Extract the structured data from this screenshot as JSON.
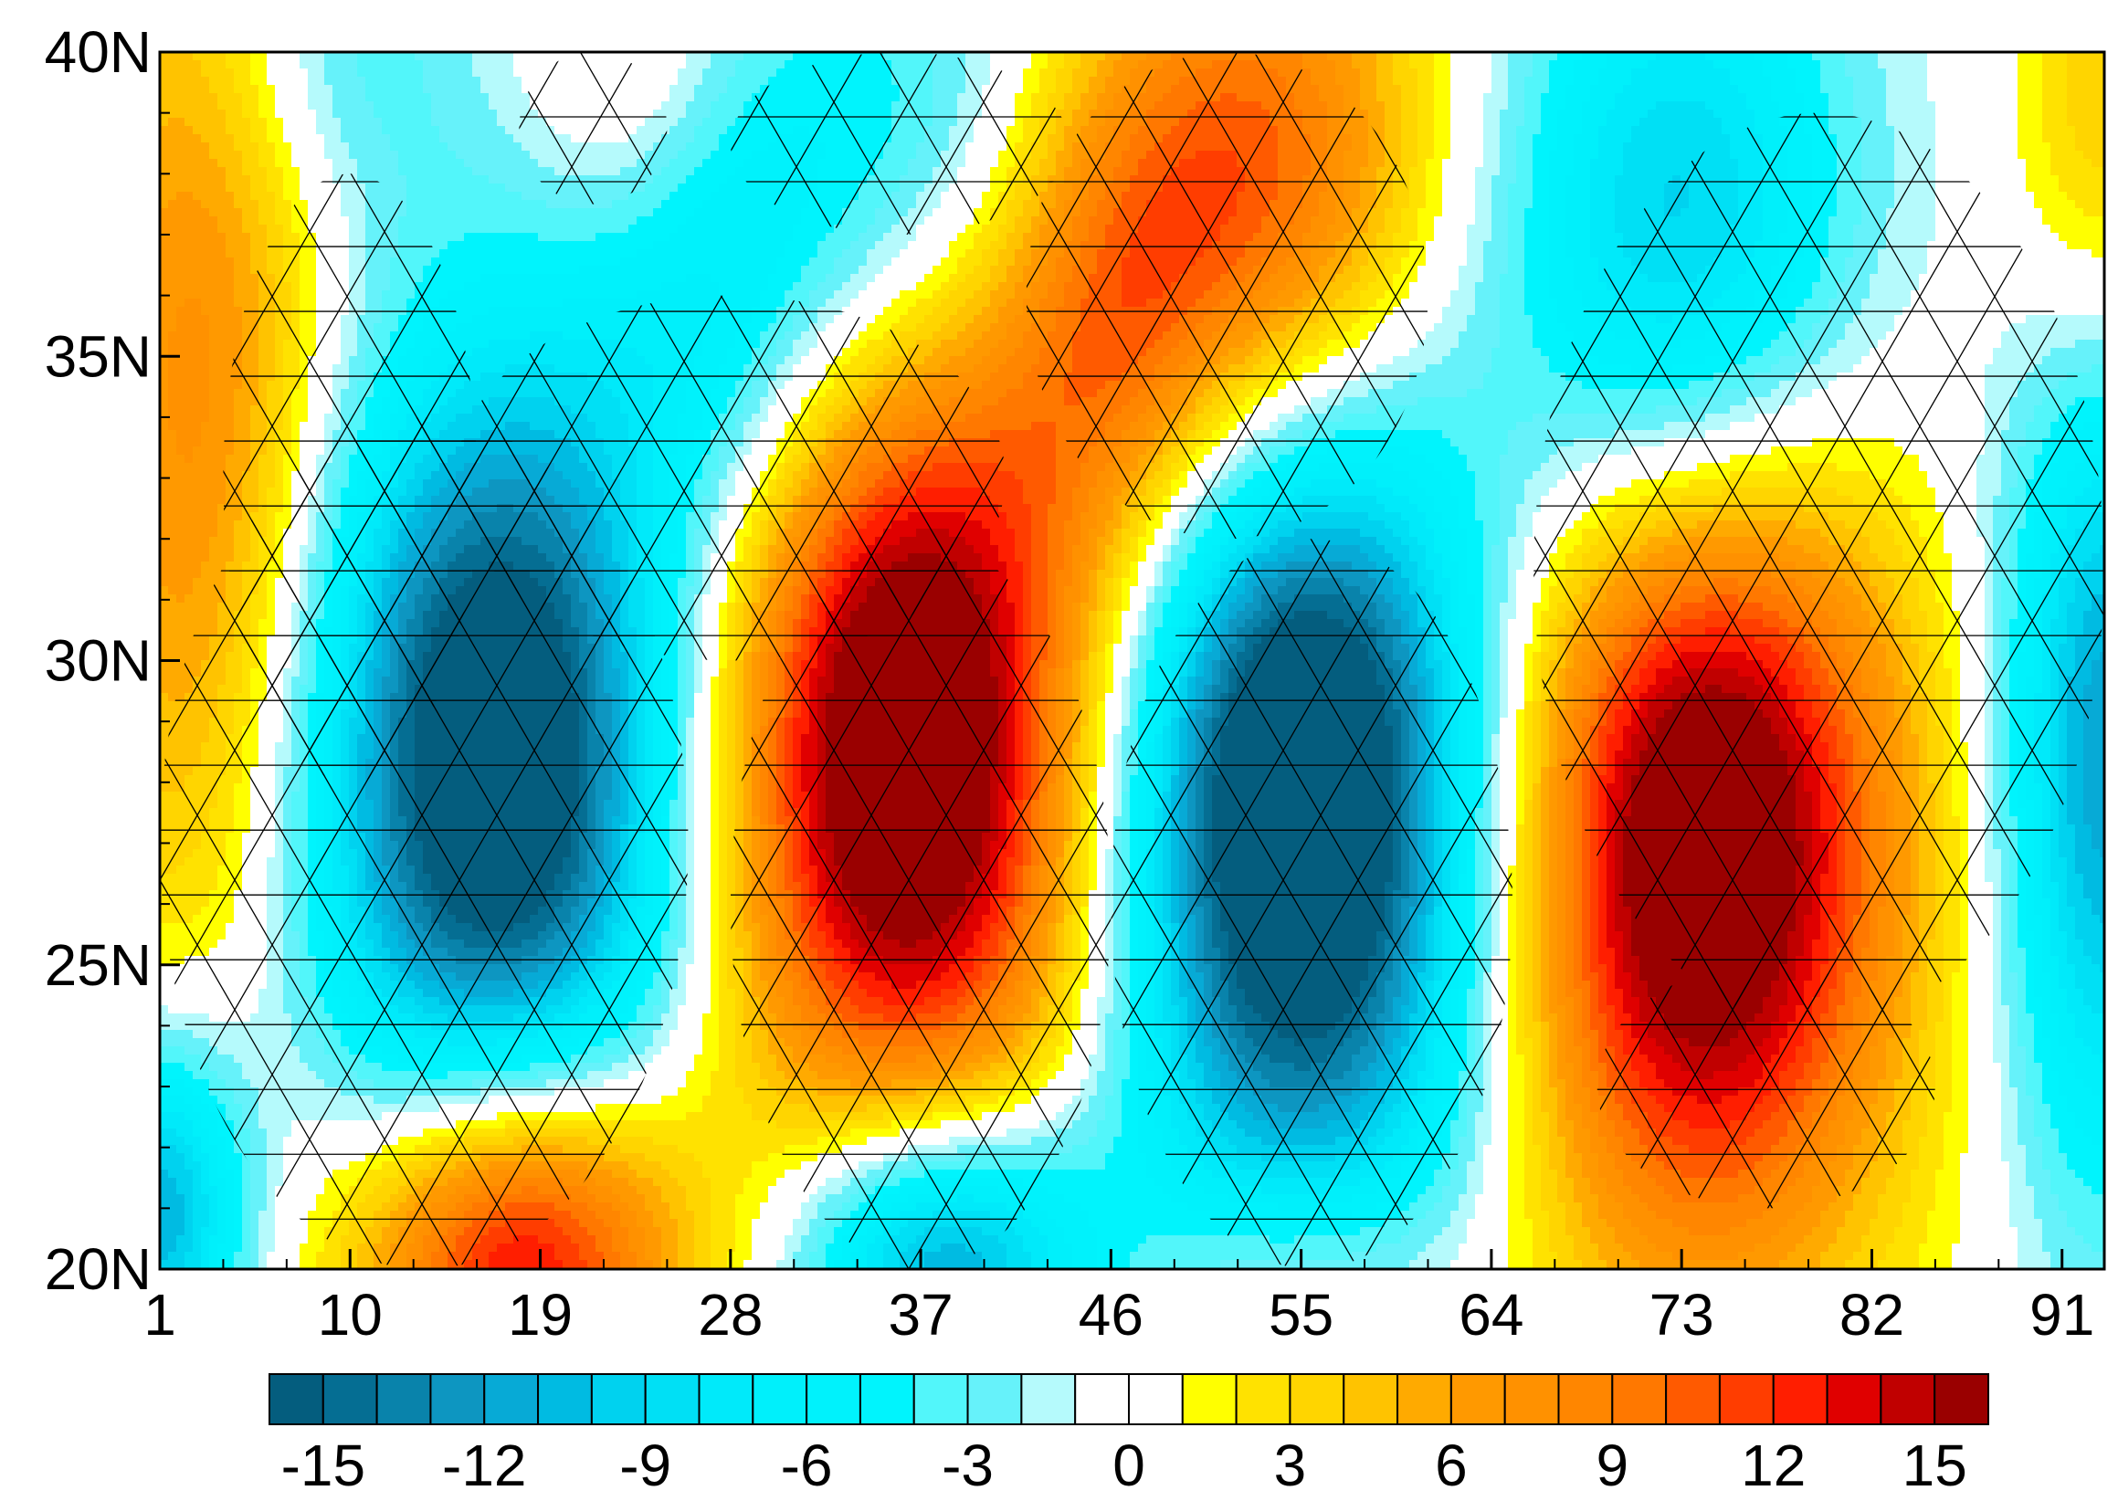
{
  "chart_data": {
    "type": "heatmap",
    "title": "",
    "xlabel": "",
    "ylabel": "",
    "x_ticks": [
      "1",
      "10",
      "19",
      "28",
      "37",
      "46",
      "55",
      "64",
      "73",
      "82",
      "91"
    ],
    "x_tick_values": [
      1,
      10,
      19,
      28,
      37,
      46,
      55,
      64,
      73,
      82,
      91
    ],
    "y_ticks": [
      "40N",
      "35N",
      "30N",
      "25N",
      "20N"
    ],
    "y_tick_values": [
      40,
      35,
      30,
      25,
      20
    ],
    "xlim": [
      1,
      93
    ],
    "ylim": [
      20,
      40
    ],
    "colorbar": {
      "levels": [
        -16,
        -15,
        -14,
        -13,
        -12,
        -11,
        -10,
        -9,
        -8,
        -7,
        -6,
        -5,
        -4,
        -3,
        -2,
        -1,
        0,
        1,
        2,
        3,
        4,
        5,
        6,
        7,
        8,
        9,
        10,
        11,
        12,
        13,
        14,
        15,
        16
      ],
      "colors": [
        "#045d7e",
        "#056e93",
        "#0983ab",
        "#0d96c1",
        "#07aad6",
        "#00bbe2",
        "#00d2ef",
        "#00e0f5",
        "#00eafa",
        "#00f0fb",
        "#00f2fc",
        "#00f4fd",
        "#52f6fa",
        "#66f2fa",
        "#b5fafc",
        "#ffffff",
        "#ffffff",
        "#ffff00",
        "#ffe200",
        "#ffd500",
        "#ffc300",
        "#ffaa00",
        "#ff9900",
        "#ff9100",
        "#ff8600",
        "#ff7800",
        "#ff5a00",
        "#ff3d00",
        "#ff1e00",
        "#e00000",
        "#c00000",
        "#9a0000"
      ],
      "tick_labels": [
        "-15",
        "-12",
        "-9",
        "-6",
        "-3",
        "0",
        "3",
        "6",
        "9",
        "12",
        "15"
      ],
      "tick_values": [
        -15,
        -12,
        -9,
        -6,
        -3,
        0,
        3,
        6,
        9,
        12,
        15
      ]
    },
    "centers": [
      {
        "x": 17,
        "y": 28.3,
        "value": -19,
        "sx": 6.5,
        "sy": 4.8
      },
      {
        "x": 36.5,
        "y": 28.6,
        "value": 20,
        "sx": 6.5,
        "sy": 4.7
      },
      {
        "x": 55,
        "y": 27.8,
        "value": -21,
        "sx": 6.5,
        "sy": 5.2
      },
      {
        "x": 74,
        "y": 27.3,
        "value": 20,
        "sx": 6.5,
        "sy": 5.0
      },
      {
        "x": 18,
        "y": 20.3,
        "value": 17,
        "sx": 5.5,
        "sy": 2.2
      },
      {
        "x": 38,
        "y": 20.2,
        "value": -14,
        "sx": 5.0,
        "sy": 1.8
      },
      {
        "x": 55,
        "y": 20.0,
        "value": 4,
        "sx": 5.0,
        "sy": 1.2
      },
      {
        "x": 3,
        "y": 34,
        "value": 8,
        "sx": 4.5,
        "sy": 7.0
      },
      {
        "x": 1,
        "y": 21,
        "value": -12,
        "sx": 3.0,
        "sy": 2.0
      },
      {
        "x": 23,
        "y": 39.5,
        "value": 3,
        "sx": 3.5,
        "sy": 2.0
      },
      {
        "x": 9,
        "y": 40,
        "value": -4,
        "sx": 4.5,
        "sy": 2.0
      },
      {
        "x": 36,
        "y": 38.5,
        "value": -5,
        "sx": 5.5,
        "sy": 3.0
      },
      {
        "x": 53,
        "y": 37.3,
        "value": 13,
        "sx": 6.0,
        "sy": 3.5
      },
      {
        "x": 73,
        "y": 36.3,
        "value": -12,
        "sx": 6.0,
        "sy": 4.0
      },
      {
        "x": 93,
        "y": 38.5,
        "value": 5,
        "sx": 3.0,
        "sy": 3.0
      },
      {
        "x": 93,
        "y": 28.5,
        "value": -12,
        "sx": 3.5,
        "sy": 5.0
      },
      {
        "x": 28,
        "y": 35.8,
        "value": -6,
        "sx": 5.0,
        "sy": 3.0
      },
      {
        "x": 46,
        "y": 35.0,
        "value": 6,
        "sx": 4.0,
        "sy": 3.0
      }
    ],
    "hatch_regions": [
      {
        "x": [
          1,
          26
        ],
        "y": [
          20,
          34
        ]
      },
      {
        "x": [
          4,
          16
        ],
        "y": [
          28,
          38
        ]
      },
      {
        "x": [
          18,
          25
        ],
        "y": [
          37.5,
          40
        ]
      },
      {
        "x": [
          15,
          41
        ],
        "y": [
          30,
          36
        ]
      },
      {
        "x": [
          28,
          46
        ],
        "y": [
          20,
          32
        ]
      },
      {
        "x": [
          28,
          44
        ],
        "y": [
          37,
          40
        ]
      },
      {
        "x": [
          42,
          61
        ],
        "y": [
          32,
          40
        ]
      },
      {
        "x": [
          46,
          65
        ],
        "y": [
          20,
          32
        ]
      },
      {
        "x": [
          66,
          93
        ],
        "y": [
          24,
          39
        ]
      },
      {
        "x": [
          69,
          85
        ],
        "y": [
          21,
          25
        ]
      }
    ]
  }
}
